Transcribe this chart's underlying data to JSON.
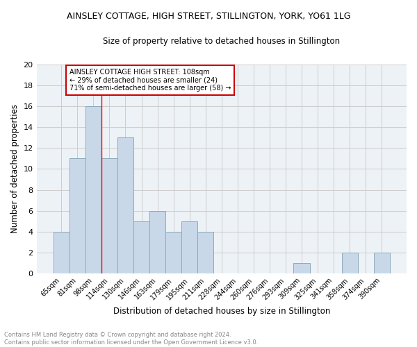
{
  "title": "AINSLEY COTTAGE, HIGH STREET, STILLINGTON, YORK, YO61 1LG",
  "subtitle": "Size of property relative to detached houses in Stillington",
  "xlabel": "Distribution of detached houses by size in Stillington",
  "ylabel": "Number of detached properties",
  "categories": [
    "65sqm",
    "81sqm",
    "98sqm",
    "114sqm",
    "130sqm",
    "146sqm",
    "163sqm",
    "179sqm",
    "195sqm",
    "211sqm",
    "228sqm",
    "244sqm",
    "260sqm",
    "276sqm",
    "293sqm",
    "309sqm",
    "325sqm",
    "341sqm",
    "358sqm",
    "374sqm",
    "390sqm"
  ],
  "values": [
    4,
    11,
    16,
    11,
    13,
    5,
    6,
    4,
    5,
    4,
    0,
    0,
    0,
    0,
    0,
    1,
    0,
    0,
    2,
    0,
    2
  ],
  "bar_color": "#c8d8e8",
  "bar_edgecolor": "#8aaabb",
  "red_line_index": 2.5,
  "annotation_text": "AINSLEY COTTAGE HIGH STREET: 108sqm\n← 29% of detached houses are smaller (24)\n71% of semi-detached houses are larger (58) →",
  "annotation_box_edgecolor": "#cc0000",
  "ylim": [
    0,
    20
  ],
  "yticks": [
    0,
    2,
    4,
    6,
    8,
    10,
    12,
    14,
    16,
    18,
    20
  ],
  "footer_line1": "Contains HM Land Registry data © Crown copyright and database right 2024.",
  "footer_line2": "Contains public sector information licensed under the Open Government Licence v3.0.",
  "grid_color": "#cccccc",
  "background_color": "#edf2f7"
}
